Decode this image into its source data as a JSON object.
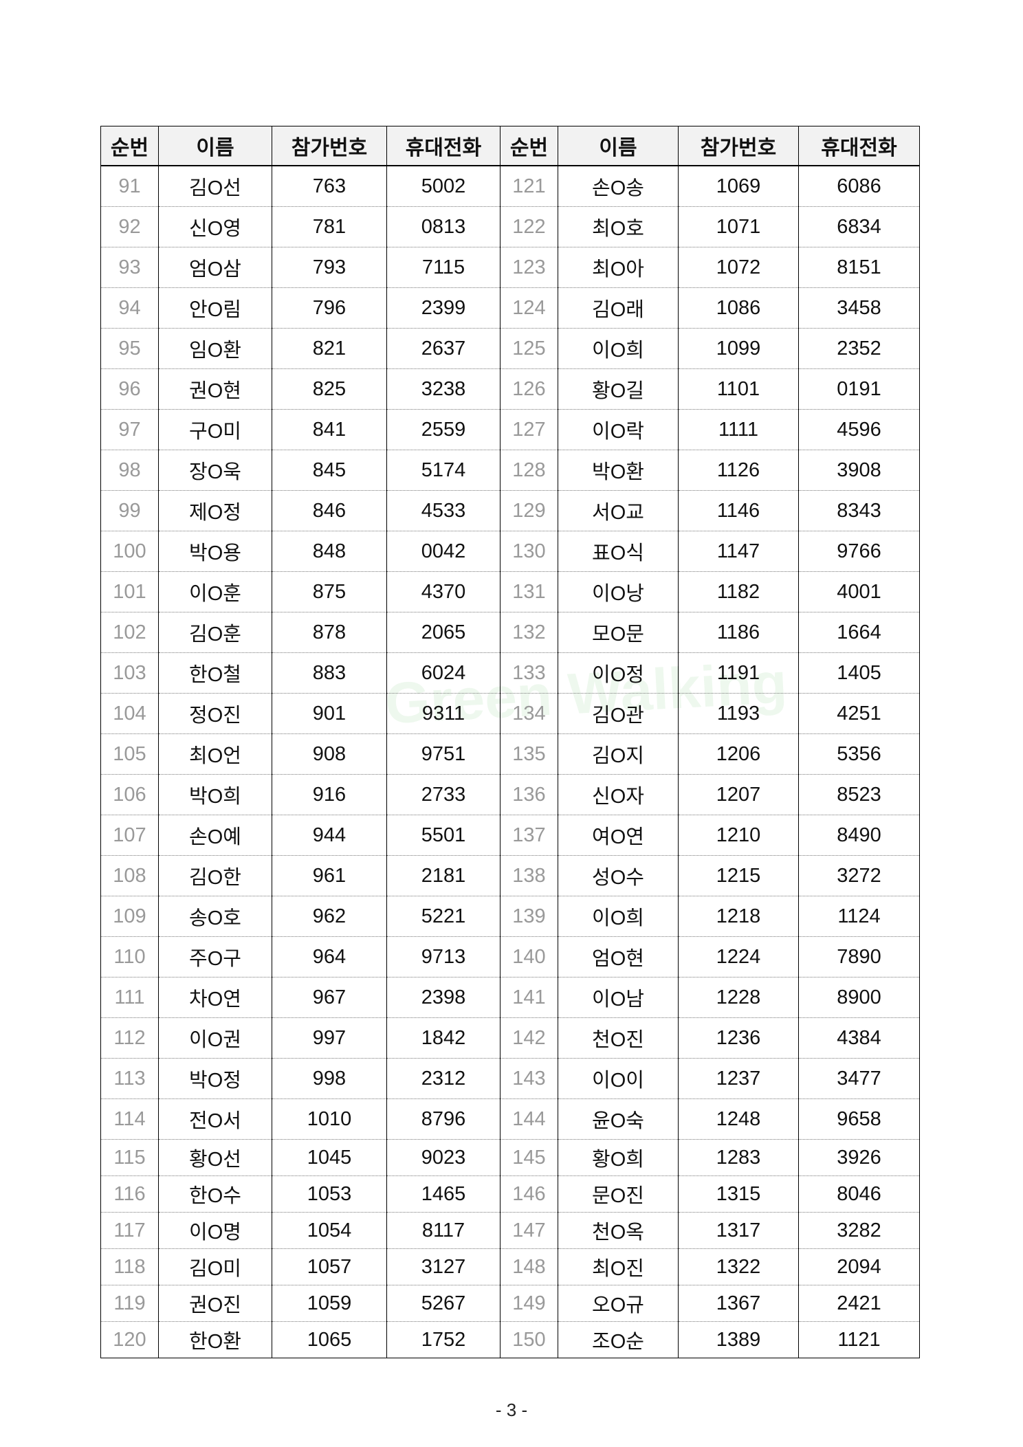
{
  "headers": [
    "순번",
    "이름",
    "참가번호",
    "휴대전화",
    "순번",
    "이름",
    "참가번호",
    "휴대전화"
  ],
  "rows": [
    [
      [
        "91",
        "김O선",
        "763",
        "5002"
      ],
      [
        "121",
        "손O송",
        "1069",
        "6086"
      ]
    ],
    [
      [
        "92",
        "신O영",
        "781",
        "0813"
      ],
      [
        "122",
        "최O호",
        "1071",
        "6834"
      ]
    ],
    [
      [
        "93",
        "엄O삼",
        "793",
        "7115"
      ],
      [
        "123",
        "최O아",
        "1072",
        "8151"
      ]
    ],
    [
      [
        "94",
        "안O림",
        "796",
        "2399"
      ],
      [
        "124",
        "김O래",
        "1086",
        "3458"
      ]
    ],
    [
      [
        "95",
        "임O환",
        "821",
        "2637"
      ],
      [
        "125",
        "이O희",
        "1099",
        "2352"
      ]
    ],
    [
      [
        "96",
        "권O현",
        "825",
        "3238"
      ],
      [
        "126",
        "황O길",
        "1101",
        "0191"
      ]
    ],
    [
      [
        "97",
        "구O미",
        "841",
        "2559"
      ],
      [
        "127",
        "이O락",
        "1111",
        "4596"
      ]
    ],
    [
      [
        "98",
        "장O욱",
        "845",
        "5174"
      ],
      [
        "128",
        "박O환",
        "1126",
        "3908"
      ]
    ],
    [
      [
        "99",
        "제O정",
        "846",
        "4533"
      ],
      [
        "129",
        "서O교",
        "1146",
        "8343"
      ]
    ],
    [
      [
        "100",
        "박O용",
        "848",
        "0042"
      ],
      [
        "130",
        "표O식",
        "1147",
        "9766"
      ]
    ],
    [
      [
        "101",
        "이O훈",
        "875",
        "4370"
      ],
      [
        "131",
        "이O낭",
        "1182",
        "4001"
      ]
    ],
    [
      [
        "102",
        "김O훈",
        "878",
        "2065"
      ],
      [
        "132",
        "모O문",
        "1186",
        "1664"
      ]
    ],
    [
      [
        "103",
        "한O철",
        "883",
        "6024"
      ],
      [
        "133",
        "이O정",
        "1191",
        "1405"
      ]
    ],
    [
      [
        "104",
        "정O진",
        "901",
        "9311"
      ],
      [
        "134",
        "김O관",
        "1193",
        "4251"
      ]
    ],
    [
      [
        "105",
        "최O언",
        "908",
        "9751"
      ],
      [
        "135",
        "김O지",
        "1206",
        "5356"
      ]
    ],
    [
      [
        "106",
        "박O희",
        "916",
        "2733"
      ],
      [
        "136",
        "신O자",
        "1207",
        "8523"
      ]
    ],
    [
      [
        "107",
        "손O예",
        "944",
        "5501"
      ],
      [
        "137",
        "여O연",
        "1210",
        "8490"
      ]
    ],
    [
      [
        "108",
        "김O한",
        "961",
        "2181"
      ],
      [
        "138",
        "성O수",
        "1215",
        "3272"
      ]
    ],
    [
      [
        "109",
        "송O호",
        "962",
        "5221"
      ],
      [
        "139",
        "이O희",
        "1218",
        "1124"
      ]
    ],
    [
      [
        "110",
        "주O구",
        "964",
        "9713"
      ],
      [
        "140",
        "엄O현",
        "1224",
        "7890"
      ]
    ],
    [
      [
        "111",
        "차O연",
        "967",
        "2398"
      ],
      [
        "141",
        "이O남",
        "1228",
        "8900"
      ]
    ],
    [
      [
        "112",
        "이O권",
        "997",
        "1842"
      ],
      [
        "142",
        "천O진",
        "1236",
        "4384"
      ]
    ],
    [
      [
        "113",
        "박O정",
        "998",
        "2312"
      ],
      [
        "143",
        "이O이",
        "1237",
        "3477"
      ]
    ],
    [
      [
        "114",
        "전O서",
        "1010",
        "8796"
      ],
      [
        "144",
        "윤O숙",
        "1248",
        "9658"
      ]
    ],
    [
      [
        "115",
        "황O선",
        "1045",
        "9023"
      ],
      [
        "145",
        "황O희",
        "1283",
        "3926"
      ]
    ],
    [
      [
        "116",
        "한O수",
        "1053",
        "1465"
      ],
      [
        "146",
        "문O진",
        "1315",
        "8046"
      ]
    ],
    [
      [
        "117",
        "이O명",
        "1054",
        "8117"
      ],
      [
        "147",
        "천O옥",
        "1317",
        "3282"
      ]
    ],
    [
      [
        "118",
        "김O미",
        "1057",
        "3127"
      ],
      [
        "148",
        "최O진",
        "1322",
        "2094"
      ]
    ],
    [
      [
        "119",
        "권O진",
        "1059",
        "5267"
      ],
      [
        "149",
        "오O규",
        "1367",
        "2421"
      ]
    ],
    [
      [
        "120",
        "한O환",
        "1065",
        "1752"
      ],
      [
        "150",
        "조O순",
        "1389",
        "1121"
      ]
    ]
  ],
  "watermark": "Green Walking",
  "page_number": "- 3 -"
}
